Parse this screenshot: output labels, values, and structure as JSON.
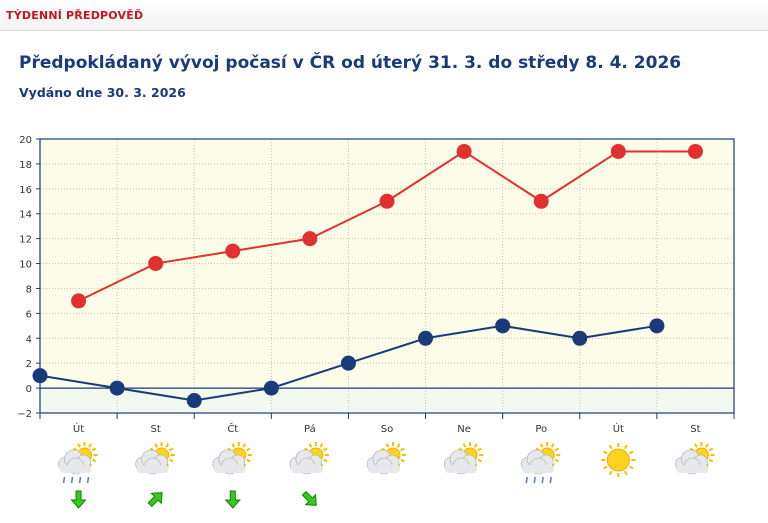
{
  "section_title": "TÝDENNÍ PŘEDPOVĚĎ",
  "title": "Předpokládaný vývoj počasí v ČR od úterý 31. 3. do středy 8. 4. 2026",
  "issued": "Vydáno dne 30. 3. 2026",
  "colors": {
    "max_series": "#e03030",
    "min_series": "#1a3a7a",
    "plot_bg": "#fcfce8",
    "below_zero_bg": "#f2faf0",
    "axis": "#1a3a7a",
    "arrow": "#33cc1a"
  },
  "chart_data": {
    "type": "line",
    "categories": [
      "Út",
      "St",
      "Čt",
      "Pá",
      "So",
      "Ne",
      "Po",
      "Út",
      "St"
    ],
    "ylim": [
      -2,
      20
    ],
    "yticks": [
      -2,
      0,
      2,
      4,
      6,
      8,
      10,
      12,
      14,
      16,
      18,
      20
    ],
    "grid": true,
    "series": [
      {
        "values": [
          7,
          10,
          11,
          12,
          15,
          19,
          15,
          19,
          19
        ],
        "offset": "day"
      },
      {
        "values": [
          1,
          0,
          -1,
          0,
          2,
          4,
          5,
          4,
          5
        ],
        "offset": "night"
      }
    ]
  },
  "weather_icons": [
    "sun-cloud-snow-icon",
    "sun-cloud-icon",
    "sun-cloud-icon",
    "sun-cloud-icon",
    "cloud-sun-icon",
    "sun-cloud-icon",
    "sun-cloud-rain-icon",
    "sun-icon",
    "sun-cloud-icon"
  ],
  "wind_arrows": [
    {
      "direction": "south-icon"
    },
    {
      "direction": "north-east-icon"
    },
    {
      "direction": "south-icon"
    },
    {
      "direction": "south-east-icon"
    }
  ]
}
